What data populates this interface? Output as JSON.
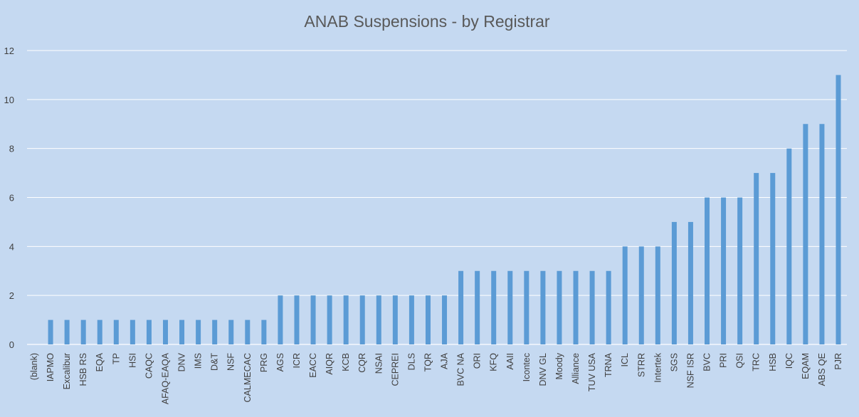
{
  "chart_data": {
    "type": "bar",
    "title": "ANAB Suspensions - by Registrar",
    "xlabel": "",
    "ylabel": "",
    "ylim": [
      0,
      12
    ],
    "yticks": [
      0,
      2,
      4,
      6,
      8,
      10,
      12
    ],
    "grid": true,
    "legend": "none",
    "bar_color": "#5b9bd5",
    "grid_color": "#ffffff",
    "background_color": "#c5d9f1",
    "categories": [
      "(blank)",
      "IAPMO",
      "Excalibur",
      "HSB RS",
      "EQA",
      "TP",
      "HSI",
      "CAQC",
      "AFAQ-EAQA",
      "DNV",
      "IMS",
      "D&T",
      "NSF",
      "CALMECAC",
      "PRG",
      "AGS",
      "ICR",
      "EACC",
      "AIQR",
      "KCB",
      "CQR",
      "NSAI",
      "CEPREI",
      "DLS",
      "TQR",
      "AJA",
      "BVC NA",
      "ORI",
      "KFQ",
      "AAII",
      "Icontec",
      "DNV GL",
      "Moody",
      "Alliance",
      "TUV USA",
      "TRNA",
      "ICL",
      "STRR",
      "Intertek",
      "SGS",
      "NSF ISR",
      "BVC",
      "PRI",
      "QSI",
      "TRC",
      "HSB",
      "IQC",
      "EQAM",
      "ABS QE",
      "PJR"
    ],
    "values": [
      0,
      1,
      1,
      1,
      1,
      1,
      1,
      1,
      1,
      1,
      1,
      1,
      1,
      1,
      1,
      2,
      2,
      2,
      2,
      2,
      2,
      2,
      2,
      2,
      2,
      2,
      3,
      3,
      3,
      3,
      3,
      3,
      3,
      3,
      3,
      3,
      4,
      4,
      4,
      5,
      5,
      6,
      6,
      6,
      7,
      7,
      8,
      9,
      9,
      11
    ]
  }
}
